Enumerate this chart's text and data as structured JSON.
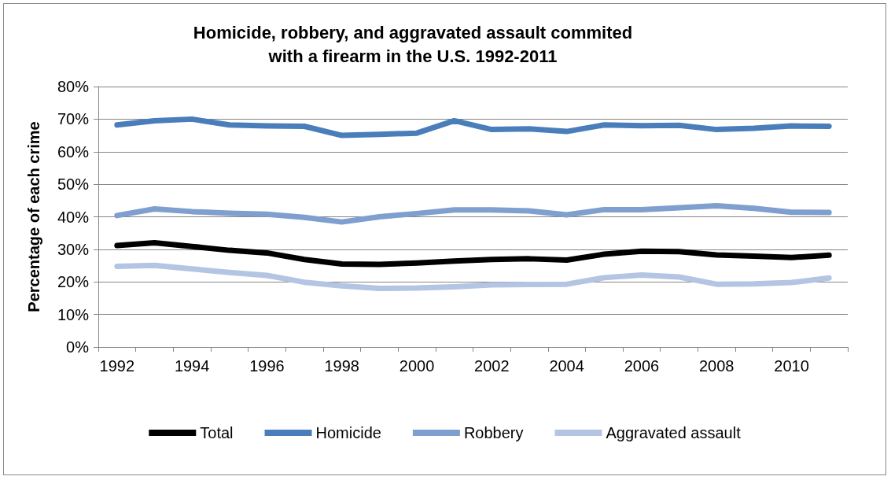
{
  "chart_data": {
    "type": "line",
    "title": "Homicide, robbery, and aggravated assault commited\nwith a firearm in the U.S. 1992-2011",
    "ylabel": "Percentage of each crime",
    "categories": [
      "1992",
      null,
      "1994",
      null,
      "1996",
      null,
      "1998",
      null,
      "2000",
      null,
      "2002",
      null,
      "2004",
      null,
      "2006",
      null,
      "2008",
      null,
      "2010",
      null
    ],
    "series": [
      {
        "name": "Total",
        "color": "#000000",
        "values": [
          31.2,
          32.0,
          30.9,
          29.7,
          28.9,
          26.9,
          25.5,
          25.4,
          25.8,
          26.4,
          26.9,
          27.1,
          26.7,
          28.5,
          29.4,
          29.3,
          28.3,
          27.9,
          27.5,
          28.2
        ]
      },
      {
        "name": "Homicide",
        "color": "#4a7ebb",
        "values": [
          68.2,
          69.5,
          70.0,
          68.2,
          67.9,
          67.8,
          65.0,
          65.3,
          65.7,
          69.5,
          66.8,
          67.0,
          66.2,
          68.2,
          68.0,
          68.1,
          66.8,
          67.2,
          67.9,
          67.8
        ]
      },
      {
        "name": "Robbery",
        "color": "#7f9fcf",
        "values": [
          40.4,
          42.4,
          41.6,
          41.1,
          40.8,
          39.8,
          38.4,
          40.0,
          41.0,
          42.1,
          42.1,
          41.8,
          40.6,
          42.2,
          42.2,
          42.8,
          43.4,
          42.6,
          41.4,
          41.3
        ]
      },
      {
        "name": "Aggravated assault",
        "color": "#b3c5e3",
        "values": [
          24.8,
          25.1,
          24.0,
          22.9,
          22.0,
          19.9,
          18.8,
          18.0,
          18.1,
          18.5,
          19.1,
          19.2,
          19.3,
          21.3,
          22.1,
          21.5,
          19.3,
          19.4,
          19.8,
          21.2
        ]
      }
    ],
    "ylim": [
      0,
      80
    ],
    "yticks": [
      {
        "value": 0,
        "label": "0%"
      },
      {
        "value": 10,
        "label": "10%"
      },
      {
        "value": 20,
        "label": "20%"
      },
      {
        "value": 30,
        "label": "30%"
      },
      {
        "value": 40,
        "label": "40%"
      },
      {
        "value": 50,
        "label": "50%"
      },
      {
        "value": 60,
        "label": "60%"
      },
      {
        "value": 70,
        "label": "70%"
      },
      {
        "value": 80,
        "label": "80%"
      }
    ],
    "grid": "y",
    "legend": "bottom",
    "marker": "none"
  }
}
